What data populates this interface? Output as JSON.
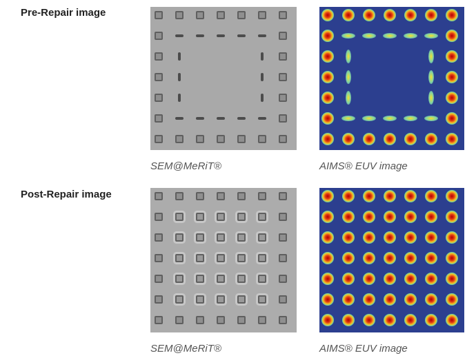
{
  "rows": [
    {
      "label": "Pre-Repair image",
      "sem_caption": "SEM@MeRiT®",
      "aims_caption": "AIMS® EUV image"
    },
    {
      "label": "Post-Repair image",
      "sem_caption": "SEM@MeRiT®",
      "aims_caption": "AIMS® EUV image"
    }
  ],
  "colors": {
    "sem_background": "#a9a9a9",
    "aims_background": "#2c3f8f",
    "aims_peak": "#b40000"
  }
}
